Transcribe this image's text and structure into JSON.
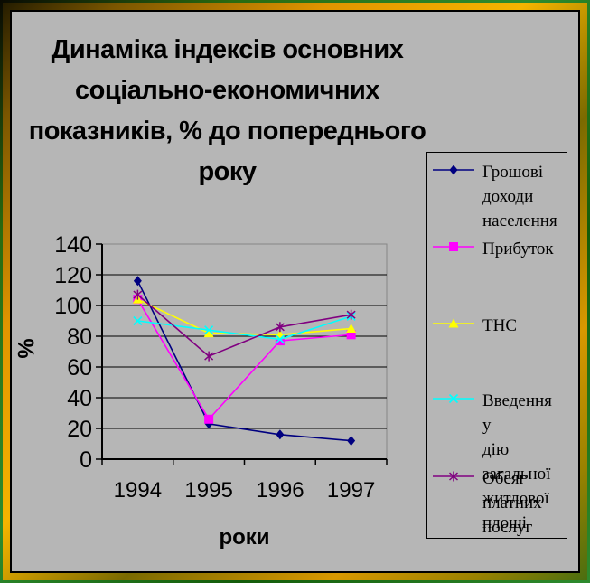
{
  "title": {
    "lines": [
      "Динаміка індексів основних",
      "соціально-економичних",
      "показників, % до попереднього",
      "року"
    ],
    "full": "Динаміка індексів основних соціально-економичних показників, % до попереднього року"
  },
  "colors": {
    "background": "#b6b6b6",
    "frame_gold": "#e09400",
    "frame_green": "#2e8b2e",
    "gridline": "#000000",
    "plot_border": "#868686"
  },
  "chart_data": {
    "type": "line",
    "title": "Динаміка індексів основних соціально-економичних показників, % до попереднього року",
    "xlabel": "роки",
    "ylabel": "%",
    "categories": [
      "1994",
      "1995",
      "1996",
      "1997"
    ],
    "ylim": [
      0,
      140
    ],
    "y_ticks": [
      0,
      20,
      40,
      60,
      80,
      100,
      120,
      140
    ],
    "grid": true,
    "legend_position": "right",
    "series": [
      {
        "name": "Грошові доходи населення",
        "label_lines": [
          "Грошові",
          "доходи",
          "населення"
        ],
        "color": "#000080",
        "marker": "diamond",
        "values": [
          116,
          23,
          16,
          12
        ]
      },
      {
        "name": "Прибуток",
        "label_lines": [
          "Прибуток"
        ],
        "color": "#ff00ff",
        "marker": "square",
        "values": [
          104,
          26,
          77,
          81
        ]
      },
      {
        "name": "ТНС",
        "label_lines": [
          "ТНС"
        ],
        "color": "#ffff00",
        "marker": "triangle",
        "values": [
          104,
          82,
          81,
          85
        ]
      },
      {
        "name": "Введення у дію загальної житлової площі",
        "label_lines": [
          "Введення у",
          "дію загальної",
          "житлової",
          "площі"
        ],
        "color": "#00ffff",
        "marker": "x",
        "values": [
          90,
          84,
          78,
          93
        ]
      },
      {
        "name": "Обсяг платних послуг",
        "label_lines": [
          "Обсяг платних",
          "послуг"
        ],
        "color": "#800080",
        "marker": "asterisk",
        "values": [
          107,
          67,
          86,
          94
        ]
      }
    ]
  }
}
